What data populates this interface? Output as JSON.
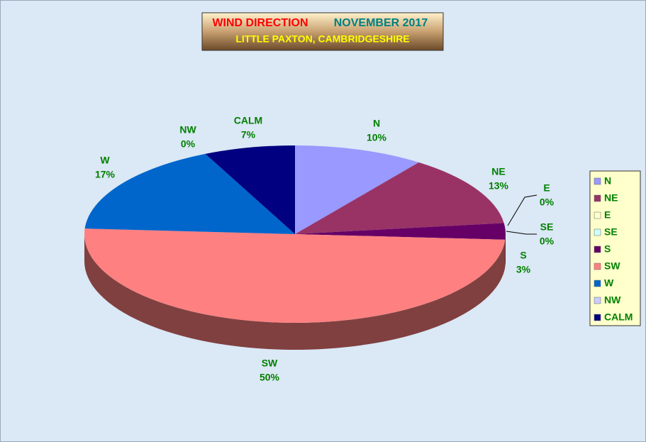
{
  "chart_data": {
    "type": "pie",
    "title": "WIND DIRECTION",
    "title_period": "NOVEMBER 2017",
    "subtitle": "LITTLE PAXTON, CAMBRIDGESHIRE",
    "categories": [
      "N",
      "NE",
      "E",
      "SE",
      "S",
      "SW",
      "W",
      "NW",
      "CALM"
    ],
    "values": [
      10,
      13,
      0,
      0,
      3,
      50,
      17,
      0,
      7
    ],
    "value_labels": [
      "10%",
      "13%",
      "0%",
      "0%",
      "3%",
      "50%",
      "17%",
      "0%",
      "7%"
    ],
    "colors": [
      "#9999ff",
      "#993366",
      "#ffffcc",
      "#ccffff",
      "#660066",
      "#ff8080",
      "#0066cc",
      "#ccccff",
      "#000080"
    ],
    "legend": "right"
  }
}
